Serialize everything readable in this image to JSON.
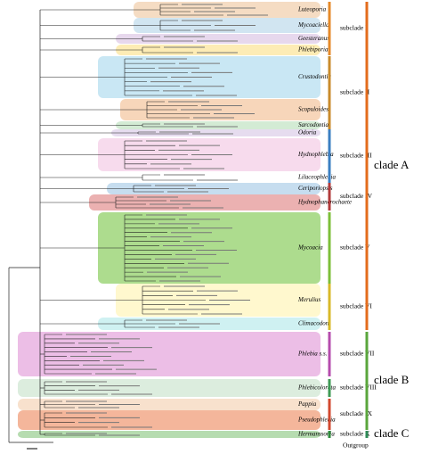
{
  "genera": [
    "Luteoporia",
    "Mycoaciella",
    "Geesteranus",
    "Phlebiporia",
    "Crustodontia",
    "Scopuloides",
    "Sarcodontia",
    "Odoria",
    "Hydnophlebia",
    "Lilaceophlebia",
    "Ceriporiopsis",
    "Hydnophanerochaete",
    "Mycoacia",
    "Merulius",
    "Climacodon",
    "Phlebia s.s.",
    "Phlebicolorata",
    "Pappia",
    "Pseudophlebia",
    "Hermanssonia"
  ],
  "subclades": [
    "subclade I",
    "subclade II",
    "subclade III",
    "subclade IV",
    "subclade V",
    "subclade VI",
    "subclade VII",
    "subclade VIII",
    "subclade IX",
    "subclade X"
  ],
  "clades": [
    "clade A",
    "clade B",
    "clade C"
  ],
  "outgroup": "Outgroup"
}
